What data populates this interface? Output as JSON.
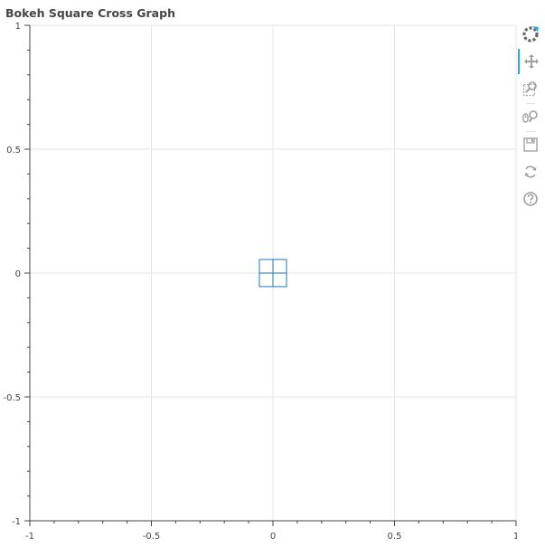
{
  "title": "Bokeh Square Cross Graph",
  "toolbar": {
    "logo": "bokeh-logo-icon",
    "tools": [
      {
        "name": "pan",
        "icon": "pan-icon",
        "active": true
      },
      {
        "name": "box_zoom",
        "icon": "box-zoom-icon",
        "active": false
      },
      {
        "name": "wheel_zoom",
        "icon": "wheel-zoom-icon",
        "active": false
      },
      {
        "name": "save",
        "icon": "save-icon",
        "active": false
      },
      {
        "name": "reset",
        "icon": "reset-icon",
        "active": false
      },
      {
        "name": "help",
        "icon": "help-icon",
        "active": false
      }
    ],
    "accent_color": "#26aae1"
  },
  "chart_data": {
    "type": "scatter",
    "marker": "square_cross",
    "title": "Bokeh Square Cross Graph",
    "xlabel": "",
    "ylabel": "",
    "xlim": [
      -1,
      1
    ],
    "ylim": [
      -1,
      1
    ],
    "x_ticks": [
      -1,
      -0.5,
      0,
      0.5,
      1
    ],
    "y_ticks": [
      -1,
      -0.5,
      0,
      0.5,
      1
    ],
    "x_tick_labels": [
      "-1",
      "-0.5",
      "0",
      "0.5",
      "1"
    ],
    "y_tick_labels": [
      "-1",
      "-0.5",
      "0",
      "0.5",
      "1"
    ],
    "grid": true,
    "series": [
      {
        "x": [
          0
        ],
        "y": [
          0
        ],
        "line_color": "#1f77b4",
        "fill": "none"
      }
    ],
    "colors": {
      "grid": "#e5e5e5",
      "axis": "#444444",
      "tick_label": "#444444",
      "marker": "#1f77b4"
    }
  }
}
